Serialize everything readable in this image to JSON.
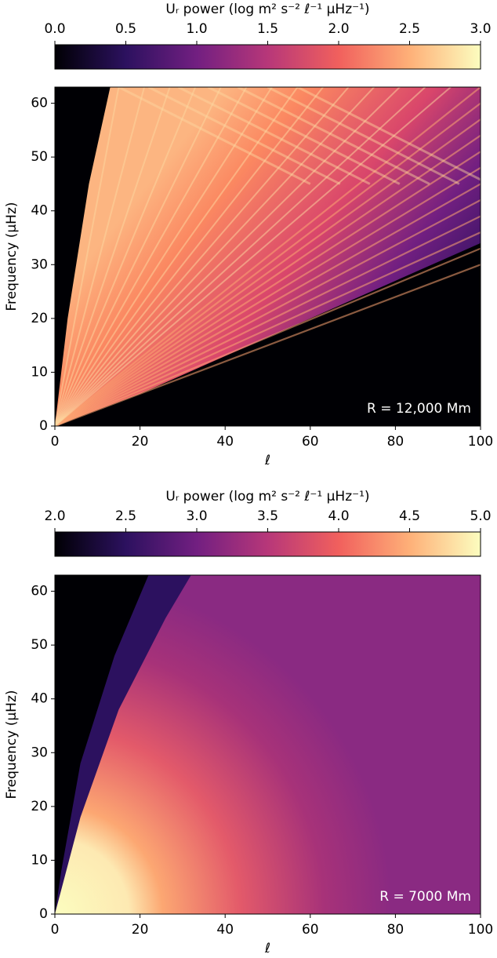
{
  "chart_data": [
    {
      "type": "heatmap",
      "colormap": "magma",
      "colorbar_label": "Uᵣ power (log m² s⁻² ℓ⁻¹ μHz⁻¹)",
      "clim": [
        0,
        3
      ],
      "cticks": [
        {
          "value": 0,
          "label": "0.0"
        },
        {
          "value": 0.5,
          "label": "0.5"
        },
        {
          "value": 1,
          "label": "1.0"
        },
        {
          "value": 1.5,
          "label": "1.5"
        },
        {
          "value": 2,
          "label": "2.0"
        },
        {
          "value": 2.5,
          "label": "2.5"
        },
        {
          "value": 3,
          "label": "3.0"
        }
      ],
      "xlabel": "ℓ",
      "ylabel": "Frequency (μHz)",
      "xlim": [
        0,
        100
      ],
      "xticks": [
        0,
        20,
        40,
        60,
        80,
        100
      ],
      "ylim": [
        0,
        63
      ],
      "yticks": [
        0,
        10,
        20,
        30,
        40,
        50,
        60
      ],
      "annotation": "R = 12,000 Mm"
    },
    {
      "type": "heatmap",
      "colormap": "magma",
      "colorbar_label": "Uᵣ power (log m² s⁻² ℓ⁻¹ μHz⁻¹)",
      "clim": [
        2,
        5
      ],
      "cticks": [
        {
          "value": 2,
          "label": "2.0"
        },
        {
          "value": 2.5,
          "label": "2.5"
        },
        {
          "value": 3,
          "label": "3.0"
        },
        {
          "value": 3.5,
          "label": "3.5"
        },
        {
          "value": 4,
          "label": "4.0"
        },
        {
          "value": 4.5,
          "label": "4.5"
        },
        {
          "value": 5,
          "label": "5.0"
        }
      ],
      "xlabel": "ℓ",
      "ylabel": "Frequency (μHz)",
      "xlim": [
        0,
        100
      ],
      "xticks": [
        0,
        20,
        40,
        60,
        80,
        100
      ],
      "ylim": [
        0,
        63
      ],
      "yticks": [
        0,
        10,
        20,
        30,
        40,
        50,
        60
      ],
      "annotation": "R = 7000 Mm"
    }
  ]
}
